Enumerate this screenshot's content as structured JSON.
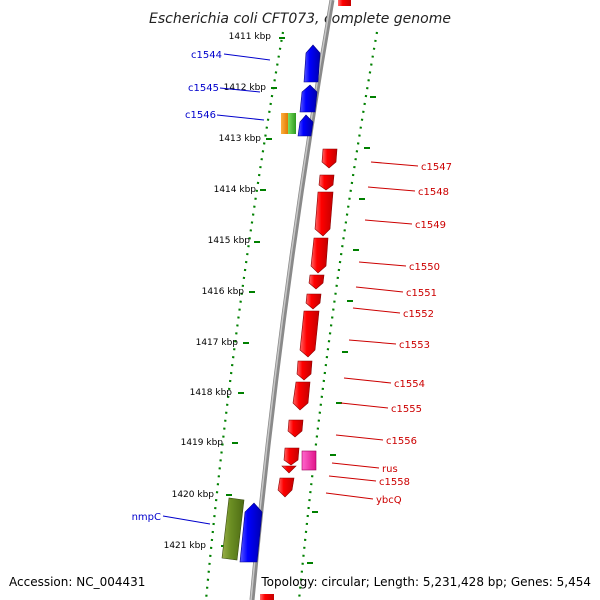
{
  "title": "Escherichia coli CFT073, complete genome",
  "accession": "Accession: NC_004431",
  "topology": "Topology: circular; Length: 5,231,428 bp; Genes: 5,454",
  "ticks": [
    "1411 kbp",
    "1412 kbp",
    "1413 kbp",
    "1414 kbp",
    "1415 kbp",
    "1416 kbp",
    "1417 kbp",
    "1418 kbp",
    "1419 kbp",
    "1420 kbp",
    "1421 kbp"
  ],
  "genes_left": [
    "c1544",
    "c1545",
    "c1546",
    "nmpC"
  ],
  "genes_right": [
    "c1547",
    "c1548",
    "c1549",
    "c1550",
    "c1551",
    "c1552",
    "c1553",
    "c1554",
    "c1555",
    "c1556",
    "rus",
    "c1558",
    "ybcQ"
  ],
  "colors": {
    "forward": "#0000ff",
    "reverse": "#ff0000",
    "left_label": "#0000cc",
    "right_label": "#cc0000",
    "track_dots": "#008000",
    "backbone": "#909090"
  }
}
